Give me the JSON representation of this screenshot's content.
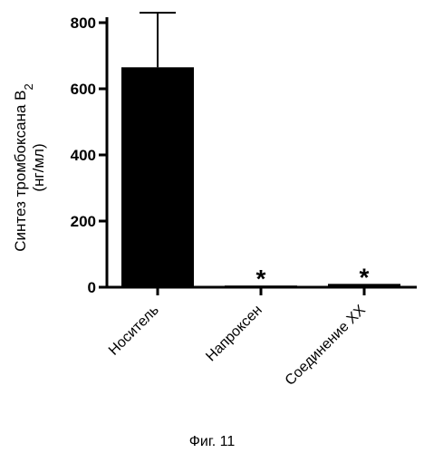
{
  "chart_data": {
    "type": "bar",
    "ylabel_line1": "Синтез тромбоксана B",
    "ylabel_subscript": "2",
    "ylabel_line2": "(нг/мл)",
    "categories": [
      "Носитель",
      "Напроксен",
      "Соединение XX"
    ],
    "values": [
      665,
      5,
      10
    ],
    "error_upper": [
      830,
      null,
      null
    ],
    "markers": [
      "",
      "*",
      "*"
    ],
    "ylim": [
      0,
      800
    ],
    "yticks": [
      0,
      200,
      400,
      600,
      800
    ],
    "bar_color": "#000000",
    "grid": false
  },
  "caption": "Фиг. 11"
}
